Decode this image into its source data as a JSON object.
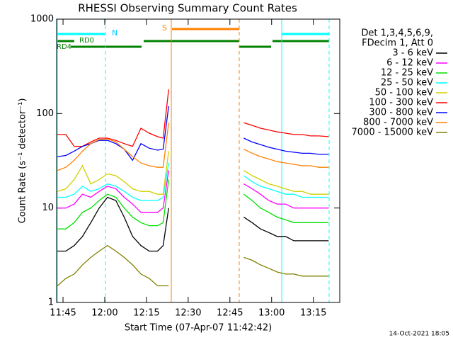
{
  "chart_data": {
    "type": "line",
    "title": "RHESSI Observing Summary Count Rates",
    "x_label": "Start Time (07-Apr-07 11:42:42)",
    "y_label": "Count Rate (s⁻¹ detector⁻¹)",
    "legend_title": [
      "Det 1,3,4,5,6,9,",
      "FDecim 1, Att 0"
    ],
    "legend_position": "right",
    "footer": "14-Oct-2021 18:05",
    "annotations": [
      "N",
      "S",
      "RD0",
      "RD4"
    ],
    "yscale": "log",
    "xlim": [
      702.7,
      804.5
    ],
    "ylim": [
      1,
      1000
    ],
    "xticks": [
      {
        "value": 705,
        "label": "11:45"
      },
      {
        "value": 720,
        "label": "12:00"
      },
      {
        "value": 735,
        "label": "12:15"
      },
      {
        "value": 750,
        "label": "12:30"
      },
      {
        "value": 765,
        "label": "12:45"
      },
      {
        "value": 780,
        "label": "13:00"
      },
      {
        "value": 795,
        "label": "13:15"
      }
    ],
    "yticks": [
      1,
      10,
      100,
      1000
    ],
    "x": [
      703,
      706,
      709,
      712,
      715,
      718,
      721,
      724,
      727,
      730,
      733,
      736,
      739,
      741,
      743,
      760,
      770,
      773,
      776,
      779,
      782,
      785,
      788,
      791,
      794,
      797,
      800.5
    ],
    "series": [
      {
        "name": "3 - 6 keV",
        "color": "#000000",
        "values": [
          3.5,
          3.5,
          4,
          5,
          7,
          10,
          13,
          12,
          8,
          5,
          4,
          3.5,
          3.5,
          4,
          10,
          null,
          8,
          7,
          6,
          5.5,
          5,
          5,
          4.5,
          4.5,
          4.5,
          4.5,
          4.5
        ]
      },
      {
        "name": "6 - 12 keV",
        "color": "#ff00ff",
        "values": [
          10,
          10,
          11,
          14,
          13,
          15,
          17,
          16,
          13,
          11,
          9,
          9,
          9,
          10,
          25,
          null,
          18,
          16,
          14,
          12,
          11,
          11,
          10,
          10,
          10,
          10,
          10
        ]
      },
      {
        "name": "12 - 25 keV",
        "color": "#00e000",
        "values": [
          6,
          6,
          7,
          9,
          10,
          12,
          14,
          13,
          10,
          8,
          7,
          6.5,
          6.5,
          7,
          20,
          null,
          14,
          12,
          10,
          9,
          8,
          7.5,
          7,
          7,
          7,
          7,
          7
        ]
      },
      {
        "name": "25 - 50 keV",
        "color": "#00ffff",
        "values": [
          13,
          13,
          14,
          17,
          15,
          16,
          18,
          17,
          15,
          13,
          12,
          12,
          12,
          13,
          30,
          null,
          22,
          19,
          17,
          16,
          15,
          14,
          14,
          13,
          13,
          13,
          13
        ]
      },
      {
        "name": "50 - 100 keV",
        "color": "#d0d000",
        "values": [
          15,
          16,
          20,
          28,
          18,
          20,
          23,
          22,
          19,
          16,
          15,
          15,
          14,
          14,
          40,
          null,
          25,
          22,
          20,
          18,
          17,
          16,
          15,
          15,
          14,
          14,
          14
        ]
      },
      {
        "name": "100 - 300 keV",
        "color": "#ff0000",
        "values": [
          60,
          60,
          45,
          45,
          50,
          55,
          55,
          52,
          48,
          45,
          70,
          62,
          57,
          55,
          180,
          null,
          80,
          75,
          70,
          67,
          64,
          62,
          60,
          60,
          58,
          58,
          57
        ]
      },
      {
        "name": "300 - 800 keV",
        "color": "#0000ff",
        "values": [
          35,
          36,
          40,
          45,
          48,
          52,
          52,
          48,
          42,
          32,
          48,
          43,
          41,
          42,
          120,
          null,
          55,
          50,
          47,
          44,
          42,
          40,
          39,
          38,
          38,
          37,
          37
        ]
      },
      {
        "name": "800 - 7000 keV",
        "color": "#ff8000",
        "values": [
          25,
          27,
          32,
          40,
          48,
          53,
          54,
          50,
          42,
          35,
          30,
          28,
          27,
          27,
          80,
          null,
          42,
          38,
          35,
          33,
          31,
          30,
          29,
          28,
          28,
          27,
          27
        ]
      },
      {
        "name": "7000 - 15000 keV",
        "color": "#808000",
        "values": [
          1.5,
          1.8,
          2,
          2.5,
          3,
          3.5,
          4,
          3.5,
          3,
          2.5,
          2,
          1.8,
          1.5,
          1.5,
          1.5,
          null,
          3,
          2.8,
          2.5,
          2.3,
          2.1,
          2,
          2,
          1.9,
          1.9,
          1.9,
          1.9
        ]
      }
    ]
  }
}
